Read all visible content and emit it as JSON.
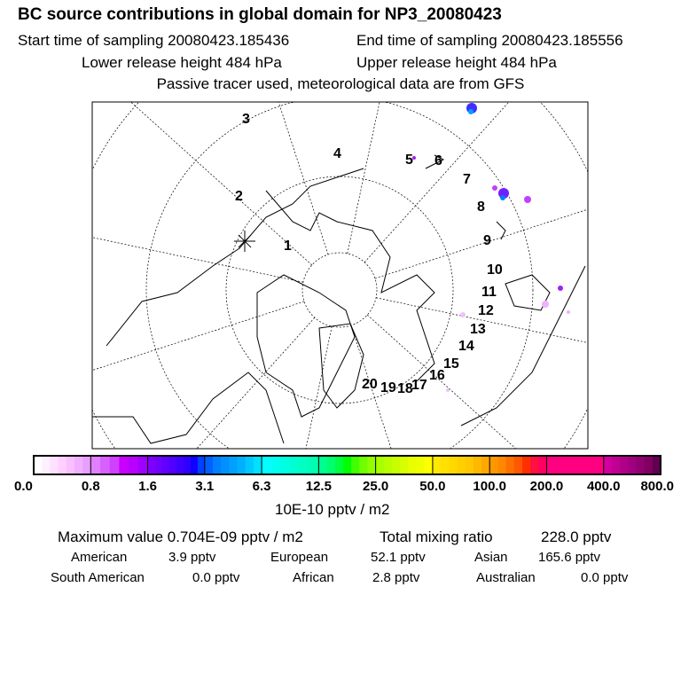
{
  "header": {
    "title": "BC  source contributions in global domain for NP3_20080423",
    "start": "Start time of sampling 20080423.185436",
    "end": "End time of sampling 20080423.185556",
    "lower": "Lower release height  484 hPa",
    "upper": "Upper release height  484 hPa",
    "note": "Passive tracer used, meteorological data are from GFS"
  },
  "chart_data": {
    "type": "heatmap",
    "title": "BC  source contributions in global domain for NP3_20080423",
    "projection": "polar stereographic, North Pole",
    "track_labels": [
      "1",
      "2",
      "3",
      "4",
      "5",
      "6",
      "7",
      "8",
      "9",
      "10",
      "11",
      "12",
      "13",
      "14",
      "15",
      "16",
      "17",
      "18",
      "19",
      "20"
    ],
    "colorbar": {
      "ticks": [
        "0.0",
        "0.8",
        "1.6",
        "3.1",
        "6.3",
        "12.5",
        "25.0",
        "50.0",
        "100.0",
        "200.0",
        "400.0",
        "800.0"
      ],
      "unit": "10E-10 pptv / m2"
    },
    "colors": [
      [
        "#ffffff",
        "#fff0ff",
        "#ffe0ff",
        "#ffd0ff",
        "#f8c0ff",
        "#f0b0ff",
        "#e8a0ff"
      ],
      [
        "#e080ff",
        "#d860ff",
        "#d040ff",
        "#c800ff",
        "#b800ff",
        "#a000ff"
      ],
      [
        "#8000ff",
        "#7000ff",
        "#6000ff",
        "#5000ff",
        "#4000ff",
        "#3000ff",
        "#1000ff",
        "#0040ff"
      ],
      [
        "#0060ff",
        "#0080ff",
        "#0090ff",
        "#00a0ff",
        "#00b0ff",
        "#00c8ff",
        "#00e0ff"
      ],
      [
        "#00ffff",
        "#00fff0",
        "#00ffe0",
        "#00ffd0",
        "#00ffc0",
        "#00ffb0"
      ],
      [
        "#00ff90",
        "#00ff70",
        "#00ff40",
        "#00ff00",
        "#40ff00",
        "#70ff00",
        "#90ff00"
      ],
      [
        "#a8ff00",
        "#b8ff00",
        "#c8ff00",
        "#d8ff00",
        "#e8ff00",
        "#f0ff00",
        "#ffff00"
      ],
      [
        "#ffe800",
        "#ffe000",
        "#ffd800",
        "#ffd000",
        "#ffc800",
        "#ffb800",
        "#ffa800"
      ],
      [
        "#ff9800",
        "#ff8800",
        "#ff7000",
        "#ff5800",
        "#ff3000",
        "#ff1040",
        "#ff0060"
      ],
      [
        "#ff0080",
        "#ff0080",
        "#ff0080",
        "#ff0080",
        "#ff0080"
      ],
      [
        "#d000a0",
        "#c00090",
        "#b00088",
        "#a00080",
        "#900070",
        "#800060",
        "#600050"
      ]
    ]
  },
  "summary": {
    "max": "Maximum value  0.704E-09 pptv / m2",
    "total_label": "Total mixing ratio",
    "total_value": "228.0 pptv",
    "american_label": "American",
    "american": "3.9 pptv",
    "european_label": "European",
    "european": "52.1 pptv",
    "asian_label": "Asian",
    "asian": "165.6 pptv",
    "southam_label": "South American",
    "southam": "0.0 pptv",
    "african_label": "African",
    "african": "2.8 pptv",
    "australian_label": "Australian",
    "australian": "0.0 pptv"
  }
}
